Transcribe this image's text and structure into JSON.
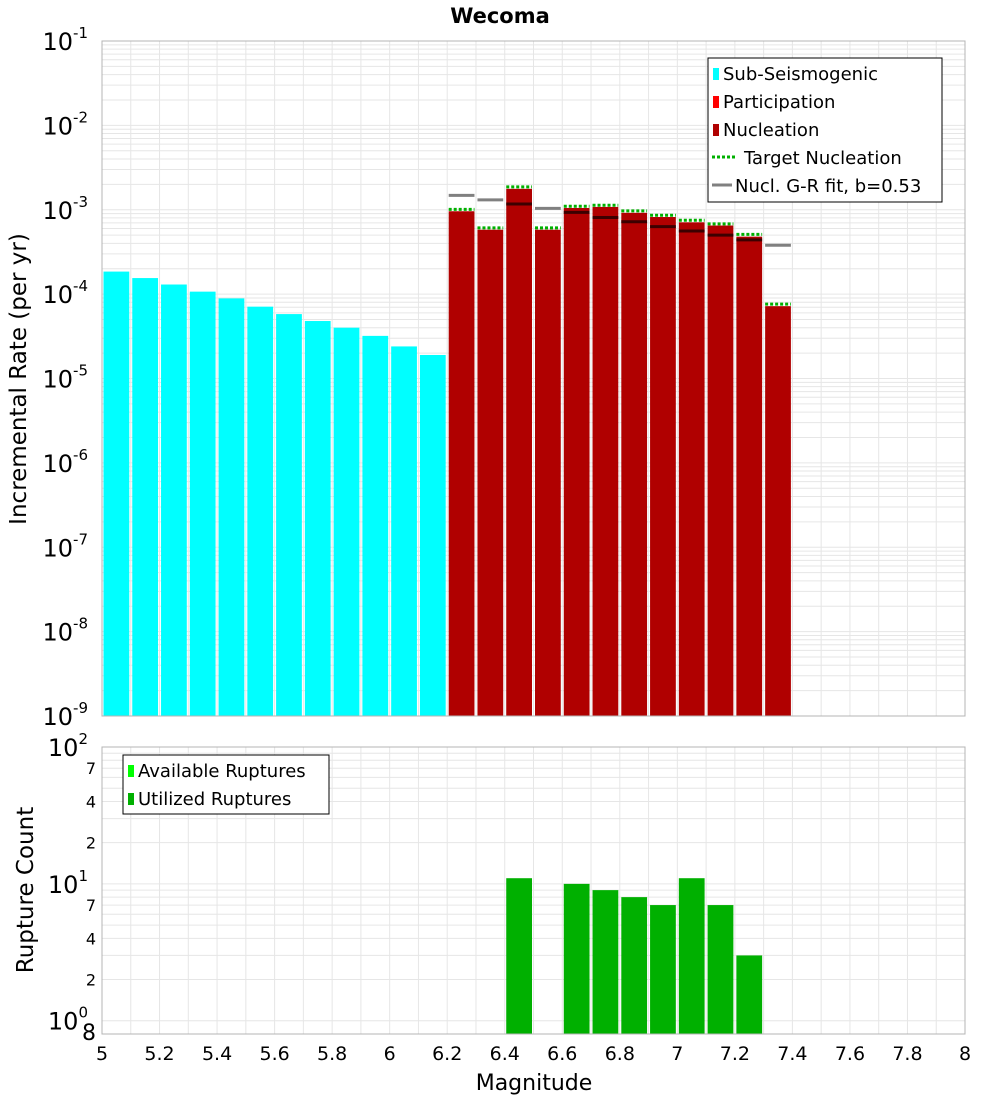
{
  "title": "Wecoma",
  "colors": {
    "sub_seismogenic": "#00ffff",
    "participation": "#ff0000",
    "nucleation": "#b00000",
    "target_nucleation": "#00b000",
    "gr_fit_gray": "#808080",
    "gr_fit_dark": "#3c0000",
    "available_ruptures": "#00ff00",
    "utilized_ruptures": "#00b000",
    "grid": "#e6e6e6",
    "frame": "#b4b4b4"
  },
  "chart_data": [
    {
      "type": "bar",
      "panel": "top",
      "title": "Wecoma",
      "ylabel": "Incremental Rate (per yr)",
      "yscale": "log",
      "ylim": [
        1e-09,
        0.1
      ],
      "xlim": [
        5,
        8
      ],
      "x_ticks": [
        5,
        5.2,
        5.4,
        5.6,
        5.8,
        6,
        6.2,
        6.4,
        6.6,
        6.8,
        7,
        7.2,
        7.4,
        7.6,
        7.8,
        8
      ],
      "y_tick_exponents": [
        -9,
        -8,
        -7,
        -6,
        -5,
        -4,
        -3,
        -2,
        -1
      ],
      "grid": true,
      "bin_width": 0.1,
      "legend_position": "top-right",
      "legend": [
        {
          "label": "Sub-Seismogenic",
          "marker": "square",
          "color": "#00ffff"
        },
        {
          "label": "Participation",
          "marker": "square",
          "color": "#ff0000"
        },
        {
          "label": "Nucleation",
          "marker": "square",
          "color": "#b00000"
        },
        {
          "label": "Target Nucleation",
          "marker": "dotted-line",
          "color": "#00b000"
        },
        {
          "label": "Nucl. G-R fit, b=0.53",
          "marker": "line",
          "color": "#808080"
        }
      ],
      "series": [
        {
          "name": "Sub-Seismogenic",
          "x": [
            5.05,
            5.15,
            5.25,
            5.35,
            5.45,
            5.55,
            5.65,
            5.75,
            5.85,
            5.95,
            6.05,
            6.15
          ],
          "values": [
            0.000185,
            0.000155,
            0.00013,
            0.000107,
            8.9e-05,
            7.1e-05,
            5.8e-05,
            4.8e-05,
            4e-05,
            3.2e-05,
            2.4e-05,
            1.9e-05
          ]
        },
        {
          "name": "Nucleation",
          "x": [
            6.25,
            6.35,
            6.45,
            6.55,
            6.65,
            6.75,
            6.85,
            6.95,
            7.05,
            7.15,
            7.25,
            7.35
          ],
          "values": [
            0.00096,
            0.00058,
            0.00177,
            0.00058,
            0.00105,
            0.00108,
            0.00092,
            0.00082,
            0.00071,
            0.00065,
            0.00048,
            7.2e-05
          ]
        },
        {
          "name": "Target Nucleation",
          "x": [
            6.25,
            6.35,
            6.45,
            6.55,
            6.65,
            6.75,
            6.85,
            6.95,
            7.05,
            7.15,
            7.25,
            7.35
          ],
          "values": [
            0.00101,
            0.00061,
            0.00187,
            0.00061,
            0.0011,
            0.00113,
            0.00097,
            0.00086,
            0.00075,
            0.00068,
            0.00051,
            7.6e-05
          ]
        },
        {
          "name": "Nucl. G-R fit, b=0.53",
          "x": [
            6.25,
            6.35,
            6.45,
            6.55,
            6.65,
            6.75,
            6.85,
            6.95,
            7.05,
            7.15,
            7.25,
            7.35
          ],
          "values": [
            0.00148,
            0.00131,
            0.00117,
            0.00104,
            0.00093,
            0.00081,
            0.00072,
            0.00063,
            0.00056,
            0.0005,
            0.00044,
            0.00038
          ]
        }
      ]
    },
    {
      "type": "bar",
      "panel": "bottom",
      "xlabel": "Magnitude",
      "ylabel": "Rupture Count",
      "yscale": "log",
      "ylim": [
        0.8,
        100
      ],
      "xlim": [
        5,
        8
      ],
      "grid": true,
      "bin_width": 0.1,
      "legend_position": "top-left",
      "y_minor_labels": [
        "7",
        "4",
        "2",
        "7",
        "4",
        "2",
        "8"
      ],
      "legend": [
        {
          "label": "Available Ruptures",
          "marker": "square",
          "color": "#00ff00"
        },
        {
          "label": "Utilized Ruptures",
          "marker": "square",
          "color": "#00b000"
        }
      ],
      "series": [
        {
          "name": "Utilized Ruptures",
          "x": [
            6.45,
            6.65,
            6.75,
            6.85,
            6.95,
            7.05,
            7.15,
            7.25
          ],
          "values": [
            11,
            10,
            9,
            8,
            7,
            11,
            7,
            3
          ]
        }
      ]
    }
  ]
}
